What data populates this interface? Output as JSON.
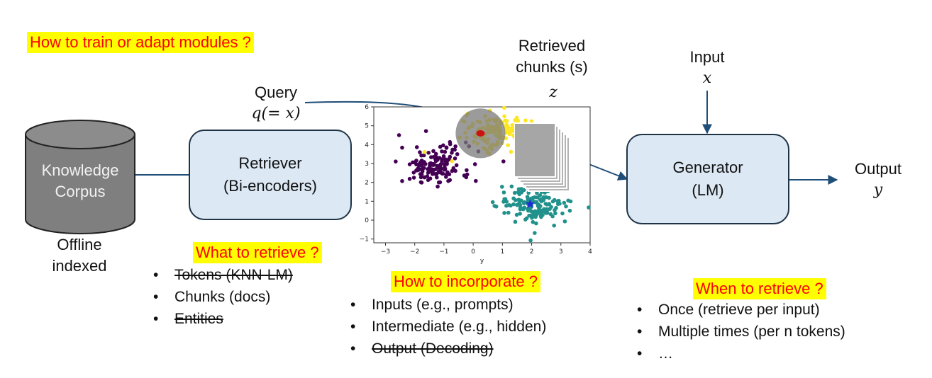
{
  "questions": {
    "train": "How to train or adapt modules ?",
    "retrieve_what": "What to retrieve ?",
    "incorporate": "How to incorporate ?",
    "retrieve_when": "When to retrieve ?"
  },
  "corpus": {
    "line1": "Knowledge",
    "line2": "Corpus",
    "caption1": "Offline",
    "caption2": "indexed"
  },
  "query": {
    "label": "Query",
    "math": "q(= x)"
  },
  "retriever": {
    "line1": "Retriever",
    "line2": "(Bi-encoders)"
  },
  "chunks": {
    "line1": "Retrieved",
    "line2": "chunks (s)",
    "math": "z"
  },
  "input": {
    "label": "Input",
    "math": "x"
  },
  "generator": {
    "line1": "Generator",
    "line2": "(LM)"
  },
  "output": {
    "label": "Output",
    "math": "y"
  },
  "what_items": [
    "Tokens (KNN-LM)",
    "Chunks (docs)",
    "Entities"
  ],
  "incorporate_items": [
    "Inputs (e.g., prompts)",
    "Intermediate (e.g., hidden)",
    "Output (Decoding)"
  ],
  "when_items": [
    "Once (retrieve per input)",
    "Multiple times (per n tokens)",
    "…"
  ],
  "chart_data": {
    "type": "scatter",
    "xlabel": "y",
    "ylabel": "",
    "xlim": [
      -3.4,
      4.0
    ],
    "ylim": [
      -1.2,
      6.0
    ],
    "xticks": [
      -3,
      -2,
      -1,
      0,
      1,
      2,
      3,
      4
    ],
    "yticks": [
      -1,
      0,
      1,
      2,
      3,
      4,
      5,
      6
    ],
    "grid": false,
    "clusters": [
      {
        "color": "#440154",
        "center": [
          -1.3,
          2.9
        ],
        "spread": [
          0.6,
          0.55
        ],
        "count": 150
      },
      {
        "color": "#fde725",
        "center": [
          0.9,
          4.7
        ],
        "spread": [
          0.6,
          0.45
        ],
        "count": 150
      },
      {
        "color": "#21918c",
        "center": [
          2.1,
          0.75
        ],
        "spread": [
          0.6,
          0.45
        ],
        "count": 160
      }
    ],
    "query_point": {
      "x": 0.25,
      "y": 4.6,
      "color": "#cc1111"
    },
    "query_radius": 0.85,
    "star_point": {
      "x": 1.95,
      "y": 0.85,
      "color": "#1f2dd6"
    }
  }
}
